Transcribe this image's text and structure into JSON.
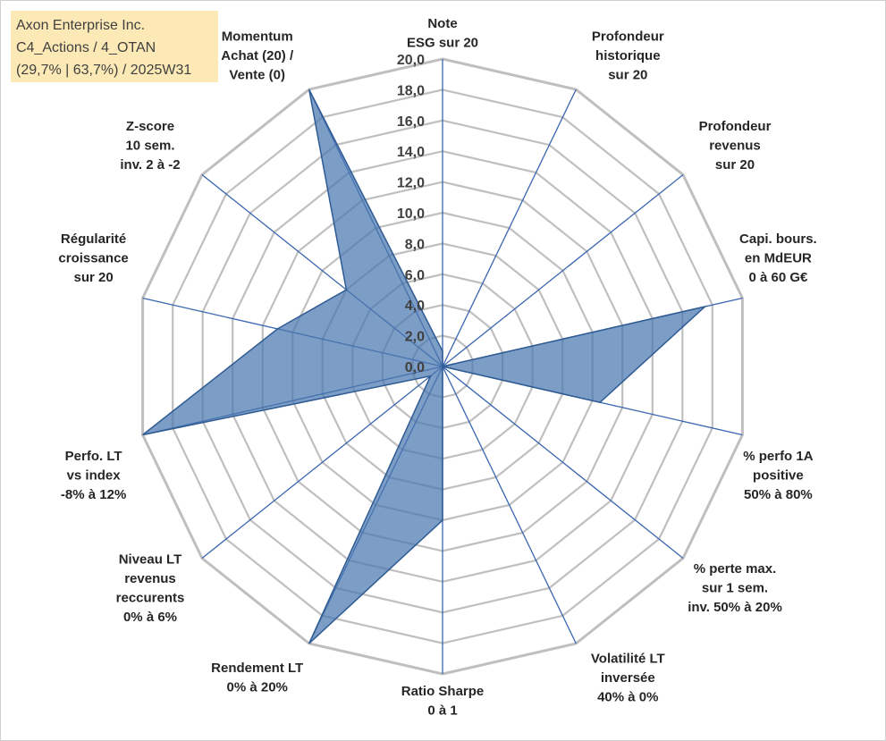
{
  "title_box": {
    "line1": "Axon Enterprise Inc.",
    "line2": "C4_Actions / 4_OTAN",
    "line3": "(29,7% | 63,7%) / 2025W31"
  },
  "colors": {
    "fill": "#4a77ae",
    "stroke": "#2f5b94",
    "spoke": "#3a66b0",
    "ring": "#bfbfbf",
    "background": "#ffffff",
    "title_bg": "#fde9b6"
  },
  "chart_data": {
    "type": "radar",
    "rmin": 0,
    "rmax": 20,
    "tick_step": 2,
    "tick_labels": [
      "0,0",
      "2,0",
      "4,0",
      "6,0",
      "8,0",
      "10,0",
      "12,0",
      "14,0",
      "16,0",
      "18,0",
      "20,0"
    ],
    "axes": [
      {
        "label": [
          "Note",
          "ESG sur 20"
        ],
        "value": 1.0
      },
      {
        "label": [
          "Profondeur",
          "historique",
          "sur 20"
        ],
        "value": 0.0
      },
      {
        "label": [
          "Profondeur",
          "revenus",
          "sur 20"
        ],
        "value": 0.0
      },
      {
        "label": [
          "Capi. bours.",
          "en MdEUR",
          "0 à 60 G€"
        ],
        "value": 17.5
      },
      {
        "label": [
          "% perfo 1A",
          "positive",
          "50% à 80%"
        ],
        "value": 10.5
      },
      {
        "label": [
          "% perte max.",
          "sur 1 sem.",
          "inv. 50% à 20%"
        ],
        "value": 0.0
      },
      {
        "label": [
          "Volatilité LT",
          "inversée",
          "40% à 0%"
        ],
        "value": 0.0
      },
      {
        "label": [
          "Ratio Sharpe",
          "0 à 1"
        ],
        "value": 10.0
      },
      {
        "label": [
          "Rendement LT",
          "0% à 20%"
        ],
        "value": 20.0
      },
      {
        "label": [
          "Niveau LT",
          "revenus",
          "reccurents",
          "0% à 6%"
        ],
        "value": 1.0
      },
      {
        "label": [
          "Perfo. LT",
          "vs index",
          "-8% à 12%"
        ],
        "value": 20.0
      },
      {
        "label": [
          "Régularité",
          "croissance",
          "sur 20"
        ],
        "value": 11.0
      },
      {
        "label": [
          "Z-score",
          "10 sem.",
          "inv. 2 à -2"
        ],
        "value": 8.0
      },
      {
        "label": [
          "Momentum",
          "Achat (20) /",
          "Vente (0)"
        ],
        "value": 20.0
      }
    ]
  }
}
